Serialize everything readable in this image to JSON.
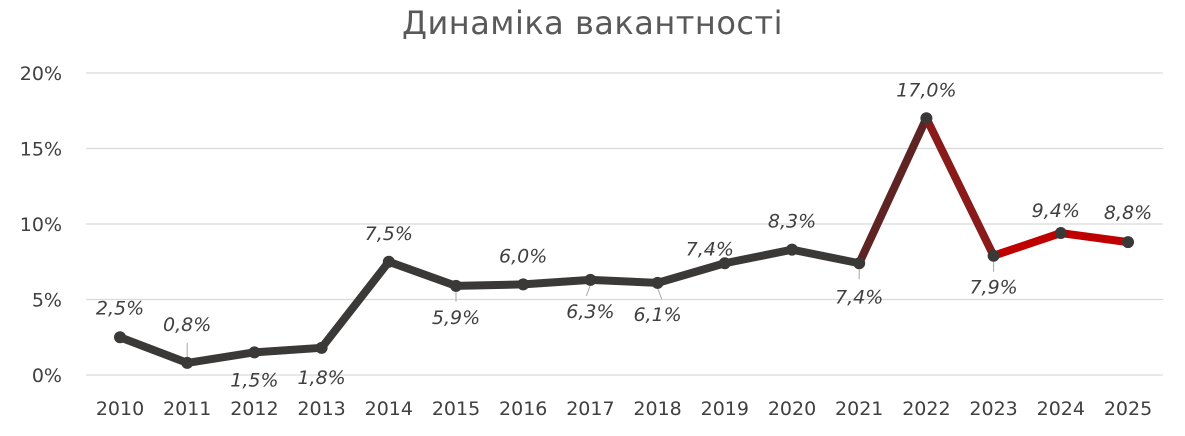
{
  "chart_data": {
    "type": "line",
    "title": "Динаміка вакантності",
    "xlabel": "",
    "ylabel": "",
    "ylim": [
      0,
      20
    ],
    "grid": true,
    "y_ticks": [
      "0%",
      "5%",
      "10%",
      "15%",
      "20%"
    ],
    "y_tick_values": [
      0,
      5,
      10,
      15,
      20
    ],
    "categories": [
      "2010",
      "2011",
      "2012",
      "2013",
      "2014",
      "2015",
      "2016",
      "2017",
      "2018",
      "2019",
      "2020",
      "2021",
      "2022",
      "2023",
      "2024",
      "2025"
    ],
    "series": [
      {
        "values": [
          2.5,
          0.8,
          1.5,
          1.8,
          7.5,
          5.9,
          6.0,
          6.3,
          6.1,
          7.4,
          8.3,
          7.4,
          17.0,
          7.9,
          9.4,
          8.8
        ],
        "labels": [
          "2,5%",
          "0,8%",
          "1,5%",
          "1,8%",
          "7,5%",
          "5,9%",
          "6,0%",
          "6,3%",
          "6,1%",
          "7,4%",
          "8,3%",
          "7,4%",
          "17,0%",
          "7,9%",
          "9,4%",
          "8,8%"
        ]
      }
    ],
    "colors": {
      "line_main": "#3b3838",
      "line_2022": "#5e2424",
      "line_2023": "#8a1b1b",
      "line_recent": "#c00000",
      "grid": "#d9d9d9",
      "text": "#404040"
    }
  }
}
